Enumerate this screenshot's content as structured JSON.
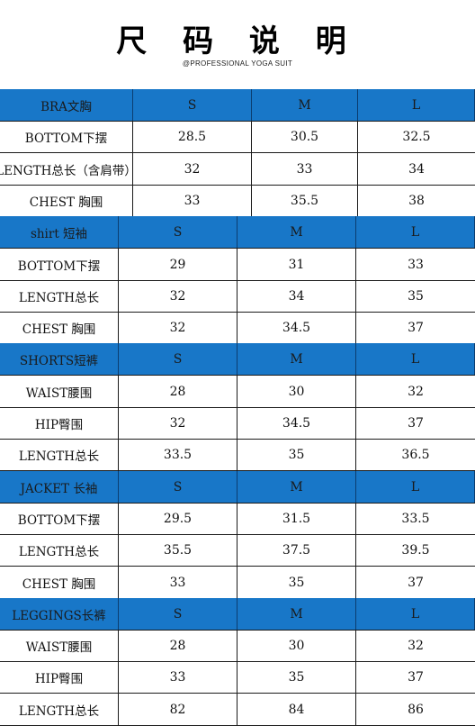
{
  "header": {
    "title": "尺 码 说 明",
    "subtitle": "@PROFESSIONAL YOGA SUIT"
  },
  "sections": [
    {
      "name": "BRA文胸",
      "sizes": [
        "S",
        "M",
        "L"
      ],
      "rows": [
        {
          "label": "BOTTOM下摆",
          "values": [
            "28.5",
            "30.5",
            "32.5"
          ]
        },
        {
          "label": "LENGTH总长（含肩带）",
          "values": [
            "32",
            "33",
            "34"
          ]
        },
        {
          "label": "CHEST 胸围",
          "values": [
            "33",
            "35.5",
            "38"
          ]
        }
      ]
    },
    {
      "name": "shirt 短袖",
      "sizes": [
        "S",
        "M",
        "L"
      ],
      "rows": [
        {
          "label": "BOTTOM下摆",
          "values": [
            "29",
            "31",
            "33"
          ]
        },
        {
          "label": "LENGTH总长",
          "values": [
            "32",
            "34",
            "35"
          ]
        },
        {
          "label": "CHEST 胸围",
          "values": [
            "32",
            "34.5",
            "37"
          ]
        }
      ]
    },
    {
      "name": "SHORTS短裤",
      "sizes": [
        "S",
        "M",
        "L"
      ],
      "rows": [
        {
          "label": "WAIST腰围",
          "values": [
            "28",
            "30",
            "32"
          ]
        },
        {
          "label": "HIP臀围",
          "values": [
            "32",
            "34.5",
            "37"
          ]
        },
        {
          "label": "LENGTH总长",
          "values": [
            "33.5",
            "35",
            "36.5"
          ]
        }
      ]
    },
    {
      "name": "JACKET 长袖",
      "sizes": [
        "S",
        "M",
        "L"
      ],
      "rows": [
        {
          "label": "BOTTOM下摆",
          "values": [
            "29.5",
            "31.5",
            "33.5"
          ]
        },
        {
          "label": "LENGTH总长",
          "values": [
            "35.5",
            "37.5",
            "39.5"
          ]
        },
        {
          "label": "CHEST 胸围",
          "values": [
            "33",
            "35",
            "37"
          ]
        }
      ]
    },
    {
      "name": "LEGGINGS长裤",
      "sizes": [
        "S",
        "M",
        "L"
      ],
      "rows": [
        {
          "label": "WAIST腰围",
          "values": [
            "28",
            "30",
            "32"
          ]
        },
        {
          "label": "HIP臀围",
          "values": [
            "33",
            "35",
            "37"
          ]
        },
        {
          "label": "LENGTH总长",
          "values": [
            "82",
            "84",
            "86"
          ]
        }
      ]
    }
  ]
}
